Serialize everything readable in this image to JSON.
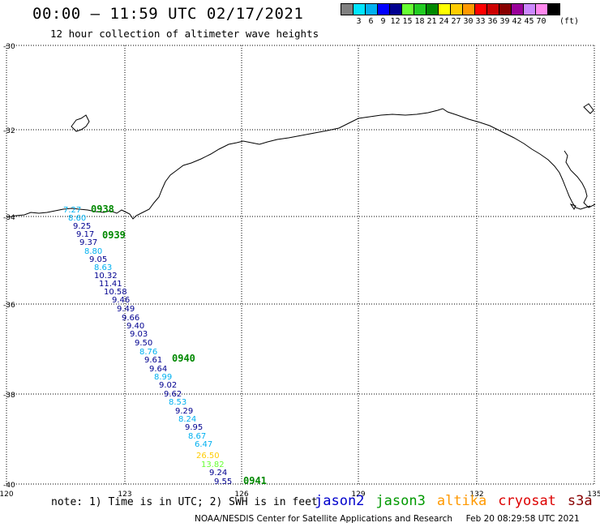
{
  "header": {
    "title": "00:00 – 11:59 UTC 02/17/2021",
    "subtitle": "12 hour collection of altimeter wave heights"
  },
  "color_legend": {
    "unit": "(ft)",
    "swatches": [
      {
        "color": "#808080",
        "label": ""
      },
      {
        "color": "#00e5ff",
        "label": "3"
      },
      {
        "color": "#00b0f0",
        "label": "6"
      },
      {
        "color": "#0000ff",
        "label": "9"
      },
      {
        "color": "#000090",
        "label": "12"
      },
      {
        "color": "#66ff33",
        "label": "15"
      },
      {
        "color": "#22cc22",
        "label": "18"
      },
      {
        "color": "#008800",
        "label": "21"
      },
      {
        "color": "#ffff00",
        "label": "24"
      },
      {
        "color": "#ffcc00",
        "label": "27"
      },
      {
        "color": "#ff9900",
        "label": "30"
      },
      {
        "color": "#ff0000",
        "label": "33"
      },
      {
        "color": "#cc0000",
        "label": "36"
      },
      {
        "color": "#880000",
        "label": "39"
      },
      {
        "color": "#990099",
        "label": "42"
      },
      {
        "color": "#cc88ff",
        "label": "45"
      },
      {
        "color": "#ff88ee",
        "label": "70"
      },
      {
        "color": "#000000",
        "label": ""
      }
    ]
  },
  "map": {
    "lat_labels": [
      "-30",
      "-32",
      "-34",
      "-36",
      "-38",
      "-40"
    ],
    "lon_labels": [
      "120",
      "123",
      "126",
      "129",
      "132",
      "135"
    ],
    "time_labels": [
      {
        "text": "0938",
        "color": "#008800"
      },
      {
        "text": "0939",
        "color": "#008800"
      },
      {
        "text": "0940",
        "color": "#008800"
      },
      {
        "text": "0941",
        "color": "#008800"
      }
    ],
    "wave_heights": [
      {
        "text": "7.27",
        "color": "#00b0f0"
      },
      {
        "text": "8.60",
        "color": "#00b0f0"
      },
      {
        "text": "9.25",
        "color": "#000090"
      },
      {
        "text": "9.17",
        "color": "#000090"
      },
      {
        "text": "9.37",
        "color": "#000090"
      },
      {
        "text": "8.80",
        "color": "#00b0f0"
      },
      {
        "text": "9.05",
        "color": "#000090"
      },
      {
        "text": "8.63",
        "color": "#00b0f0"
      },
      {
        "text": "10.32",
        "color": "#000090"
      },
      {
        "text": "11.41",
        "color": "#000090"
      },
      {
        "text": "10.58",
        "color": "#000090"
      },
      {
        "text": "9.46",
        "color": "#000090"
      },
      {
        "text": "9.49",
        "color": "#000090"
      },
      {
        "text": "9.66",
        "color": "#000090"
      },
      {
        "text": "9.40",
        "color": "#000090"
      },
      {
        "text": "9.03",
        "color": "#000090"
      },
      {
        "text": "9.50",
        "color": "#000090"
      },
      {
        "text": "8.76",
        "color": "#00b0f0"
      },
      {
        "text": "9.61",
        "color": "#000090"
      },
      {
        "text": "9.64",
        "color": "#000090"
      },
      {
        "text": "8.99",
        "color": "#00b0f0"
      },
      {
        "text": "9.02",
        "color": "#000090"
      },
      {
        "text": "9.62",
        "color": "#000090"
      },
      {
        "text": "8.53",
        "color": "#00b0f0"
      },
      {
        "text": "9.29",
        "color": "#000090"
      },
      {
        "text": "8.24",
        "color": "#00b0f0"
      },
      {
        "text": "9.95",
        "color": "#000090"
      },
      {
        "text": "8.67",
        "color": "#00b0f0"
      },
      {
        "text": "6.47",
        "color": "#00b0f0"
      },
      {
        "text": "26.50",
        "color": "#ffcc00"
      },
      {
        "text": "13.82",
        "color": "#66ff33"
      },
      {
        "text": "9.24",
        "color": "#000090"
      },
      {
        "text": "9.55",
        "color": "#000090"
      }
    ]
  },
  "footer": {
    "note": "note: 1) Time is in UTC; 2) SWH is in feet",
    "satellites": [
      {
        "name": "jason2",
        "color": "#0000cc"
      },
      {
        "name": "jason3",
        "color": "#009900"
      },
      {
        "name": "altika",
        "color": "#ff9900"
      },
      {
        "name": "cryosat",
        "color": "#dd0000"
      },
      {
        "name": "s3a",
        "color": "#880000"
      }
    ],
    "credit": "NOAA/NESDIS Center for Satellite Applications and Research     Feb 20 08:29:58 UTC 2021"
  }
}
